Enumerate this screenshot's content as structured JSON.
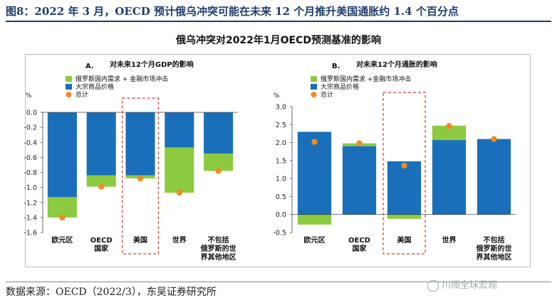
{
  "header": {
    "text": "图8：2022 年 3 月，OECD 预计俄乌冲突可能在未来 12 个月推升美国通胀约 1.4 个百分点"
  },
  "main_title": "俄乌冲突对2022年1月OECD预测基准的影响",
  "source": "数据来源：OECD（2022/3），东吴证券研究所",
  "watermark": "川阅全球宏观",
  "colors": {
    "blue": "#1a6fba",
    "green": "#8ccb3f",
    "orange": "#f08a24",
    "highlight": "#e0392b",
    "axis": "#444"
  },
  "chart_data": [
    {
      "type": "bar",
      "panel": "A.",
      "title": "对未来12个月GDP的影响",
      "ylabel": "%",
      "ylim": [
        -1.6,
        0.0
      ],
      "yticks": [
        "0.0",
        "-0.2",
        "-0.4",
        "-0.6",
        "-0.8",
        "-1.0",
        "-1.2",
        "-1.4",
        "-1.6"
      ],
      "categories": [
        [
          "欧元区"
        ],
        [
          "OECD",
          "国家"
        ],
        [
          "美国"
        ],
        [
          "世界"
        ],
        [
          "不包括",
          "俄罗斯的世",
          "界其他地区"
        ]
      ],
      "legend": [
        "俄罗斯国内需求 + 金融市场冲击",
        "大宗商品价格",
        "总计"
      ],
      "series": [
        {
          "name": "俄罗斯国内需求 + 金融市场冲击",
          "values": [
            -0.27,
            -0.15,
            -0.04,
            -0.6,
            -0.23
          ]
        },
        {
          "name": "大宗商品价格",
          "values": [
            -1.13,
            -0.84,
            -0.84,
            -0.47,
            -0.55
          ]
        },
        {
          "name": "总计",
          "values": [
            -1.4,
            -0.99,
            -0.88,
            -1.07,
            -0.78
          ]
        }
      ],
      "highlight": "美国"
    },
    {
      "type": "bar",
      "panel": "B.",
      "title": "对未来12个月通胀的影响",
      "ylabel": "%",
      "ylim": [
        -0.5,
        3.0
      ],
      "yticks": [
        "3.0",
        "2.5",
        "2.0",
        "1.5",
        "1.0",
        "0.5",
        "0.0",
        "-0.5"
      ],
      "categories": [
        [
          "欧元区"
        ],
        [
          "OECD",
          "国家"
        ],
        [
          "美国"
        ],
        [
          "世界"
        ],
        [
          "不包括",
          "俄罗斯的世",
          "界其他地区"
        ]
      ],
      "legend": [
        "俄罗斯国内需求 +金融市场冲击",
        "大宗商品价格",
        "总计"
      ],
      "series": [
        {
          "name": "俄罗斯国内需求 +金融市场冲击",
          "values": [
            -0.28,
            0.08,
            -0.12,
            0.4,
            0.0
          ]
        },
        {
          "name": "大宗商品价格",
          "values": [
            2.3,
            1.9,
            1.48,
            2.07,
            2.1
          ]
        },
        {
          "name": "总计",
          "values": [
            2.02,
            1.98,
            1.36,
            2.46,
            2.1
          ]
        }
      ],
      "highlight": "美国"
    }
  ]
}
